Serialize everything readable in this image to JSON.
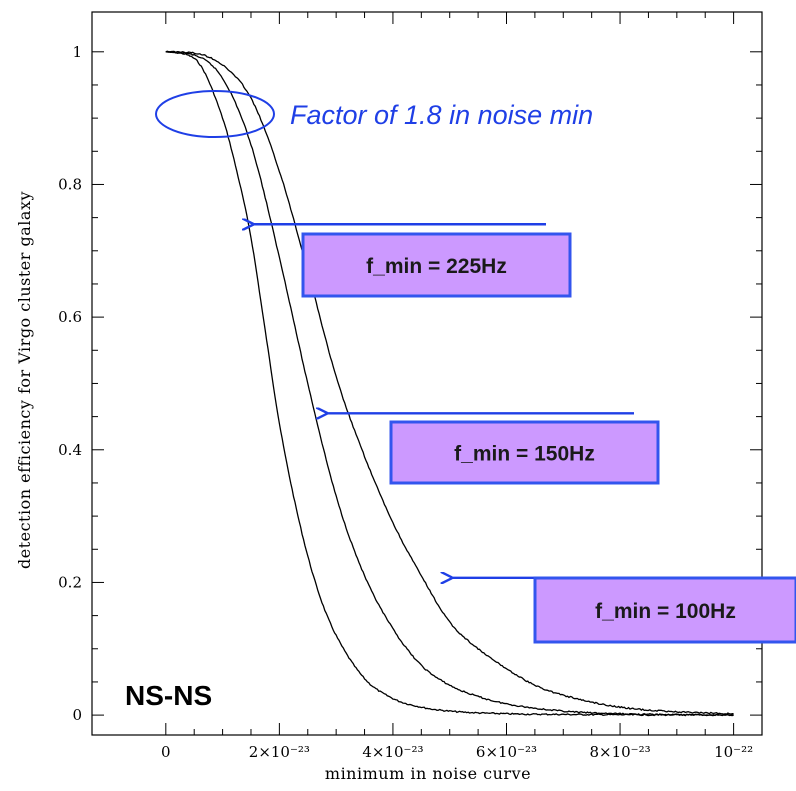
{
  "chart_data": {
    "type": "line",
    "xlabel": "minimum in noise curve",
    "ylabel": "detection efficiency for Virgo cluster galaxy",
    "xlim": [
      -1.3e-23,
      1.05e-22
    ],
    "ylim": [
      -0.03,
      1.06
    ],
    "x_ticks": [
      {
        "value": 0,
        "label": "0"
      },
      {
        "value": 2e-23,
        "label": "2×10⁻²³"
      },
      {
        "value": 4e-23,
        "label": "4×10⁻²³"
      },
      {
        "value": 6e-23,
        "label": "6×10⁻²³"
      },
      {
        "value": 8e-23,
        "label": "8×10⁻²³"
      },
      {
        "value": 1e-22,
        "label": "10⁻²²"
      }
    ],
    "y_ticks": [
      {
        "value": 0,
        "label": "0"
      },
      {
        "value": 0.2,
        "label": "0.2"
      },
      {
        "value": 0.4,
        "label": "0.4"
      },
      {
        "value": 0.6,
        "label": "0.6"
      },
      {
        "value": 0.8,
        "label": "0.8"
      },
      {
        "value": 1,
        "label": "1"
      }
    ],
    "series": [
      {
        "x": [
          0,
          5e-24,
          1e-23,
          1.25e-23,
          1.5e-23,
          1.75e-23,
          2e-23,
          2.25e-23,
          2.5e-23,
          2.75e-23,
          3e-23,
          3.5e-23,
          4e-23,
          4.5e-23,
          5e-23,
          6e-23,
          7e-23,
          1e-22
        ],
        "y": [
          1.0,
          0.99,
          0.9,
          0.82,
          0.72,
          0.58,
          0.44,
          0.33,
          0.24,
          0.17,
          0.12,
          0.055,
          0.025,
          0.012,
          0.006,
          0.002,
          0.001,
          0.0
        ]
      },
      {
        "x": [
          0,
          5e-24,
          1e-23,
          1.5e-23,
          2e-23,
          2.5e-23,
          3e-23,
          3.5e-23,
          4e-23,
          4.5e-23,
          5e-23,
          5.5e-23,
          6e-23,
          7e-23,
          8e-23,
          1e-22
        ],
        "y": [
          1.0,
          0.995,
          0.96,
          0.86,
          0.69,
          0.5,
          0.33,
          0.21,
          0.13,
          0.075,
          0.045,
          0.028,
          0.017,
          0.006,
          0.002,
          0.0
        ]
      },
      {
        "x": [
          0,
          5e-24,
          1e-23,
          1.5e-23,
          2e-23,
          2.5e-23,
          3e-23,
          3.5e-23,
          4e-23,
          4.5e-23,
          5e-23,
          5.5e-23,
          6e-23,
          6.5e-23,
          7e-23,
          8e-23,
          9e-23,
          1e-22
        ],
        "y": [
          1.0,
          0.998,
          0.98,
          0.93,
          0.82,
          0.67,
          0.51,
          0.39,
          0.29,
          0.21,
          0.14,
          0.1,
          0.07,
          0.045,
          0.03,
          0.012,
          0.005,
          0.002
        ]
      }
    ],
    "grid": false,
    "annotations": {
      "ellipse_text": "Factor of 1.8 in noise min",
      "corner_label": "NS-NS",
      "boxes": [
        {
          "text": "f_min = 225Hz",
          "points_to": {
            "x": 1.5e-23,
            "y": 0.74
          }
        },
        {
          "text": "f_min = 150Hz",
          "points_to": {
            "x": 2.8e-23,
            "y": 0.455
          }
        },
        {
          "text": "f_min = 100Hz",
          "points_to": {
            "x": 5e-23,
            "y": 0.207
          }
        }
      ]
    },
    "colors": {
      "annotation": "#1f3fe6",
      "box_fill": "#cc99ff",
      "box_border": "#3355ee",
      "curve": "#000000"
    }
  }
}
